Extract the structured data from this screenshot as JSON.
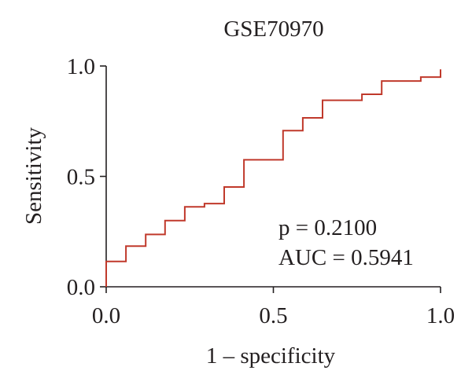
{
  "chart_data": {
    "type": "line",
    "title": "GSE70970",
    "xlabel": "1 – specificity",
    "ylabel": "Sensitivity",
    "xlim": [
      0,
      1
    ],
    "ylim": [
      0,
      1
    ],
    "xticks": [
      "0.0",
      "0.5",
      "1.0"
    ],
    "yticks": [
      "0.0",
      "0.5",
      "1.0"
    ],
    "grid": false,
    "annotations": [
      "p = 0.2100",
      "AUC = 0.5941"
    ],
    "color": "#c0392b",
    "roc_points": [
      [
        0.0,
        0.0
      ],
      [
        0.0,
        0.115
      ],
      [
        0.059,
        0.115
      ],
      [
        0.059,
        0.184
      ],
      [
        0.118,
        0.184
      ],
      [
        0.118,
        0.237
      ],
      [
        0.176,
        0.237
      ],
      [
        0.176,
        0.3
      ],
      [
        0.235,
        0.3
      ],
      [
        0.235,
        0.362
      ],
      [
        0.294,
        0.362
      ],
      [
        0.294,
        0.377
      ],
      [
        0.353,
        0.377
      ],
      [
        0.353,
        0.452
      ],
      [
        0.412,
        0.452
      ],
      [
        0.412,
        0.575
      ],
      [
        0.529,
        0.575
      ],
      [
        0.529,
        0.707
      ],
      [
        0.588,
        0.707
      ],
      [
        0.588,
        0.765
      ],
      [
        0.647,
        0.765
      ],
      [
        0.647,
        0.845
      ],
      [
        0.765,
        0.845
      ],
      [
        0.765,
        0.872
      ],
      [
        0.824,
        0.872
      ],
      [
        0.824,
        0.932
      ],
      [
        0.941,
        0.932
      ],
      [
        0.941,
        0.95
      ],
      [
        1.0,
        0.95
      ],
      [
        1.0,
        0.985
      ]
    ]
  }
}
